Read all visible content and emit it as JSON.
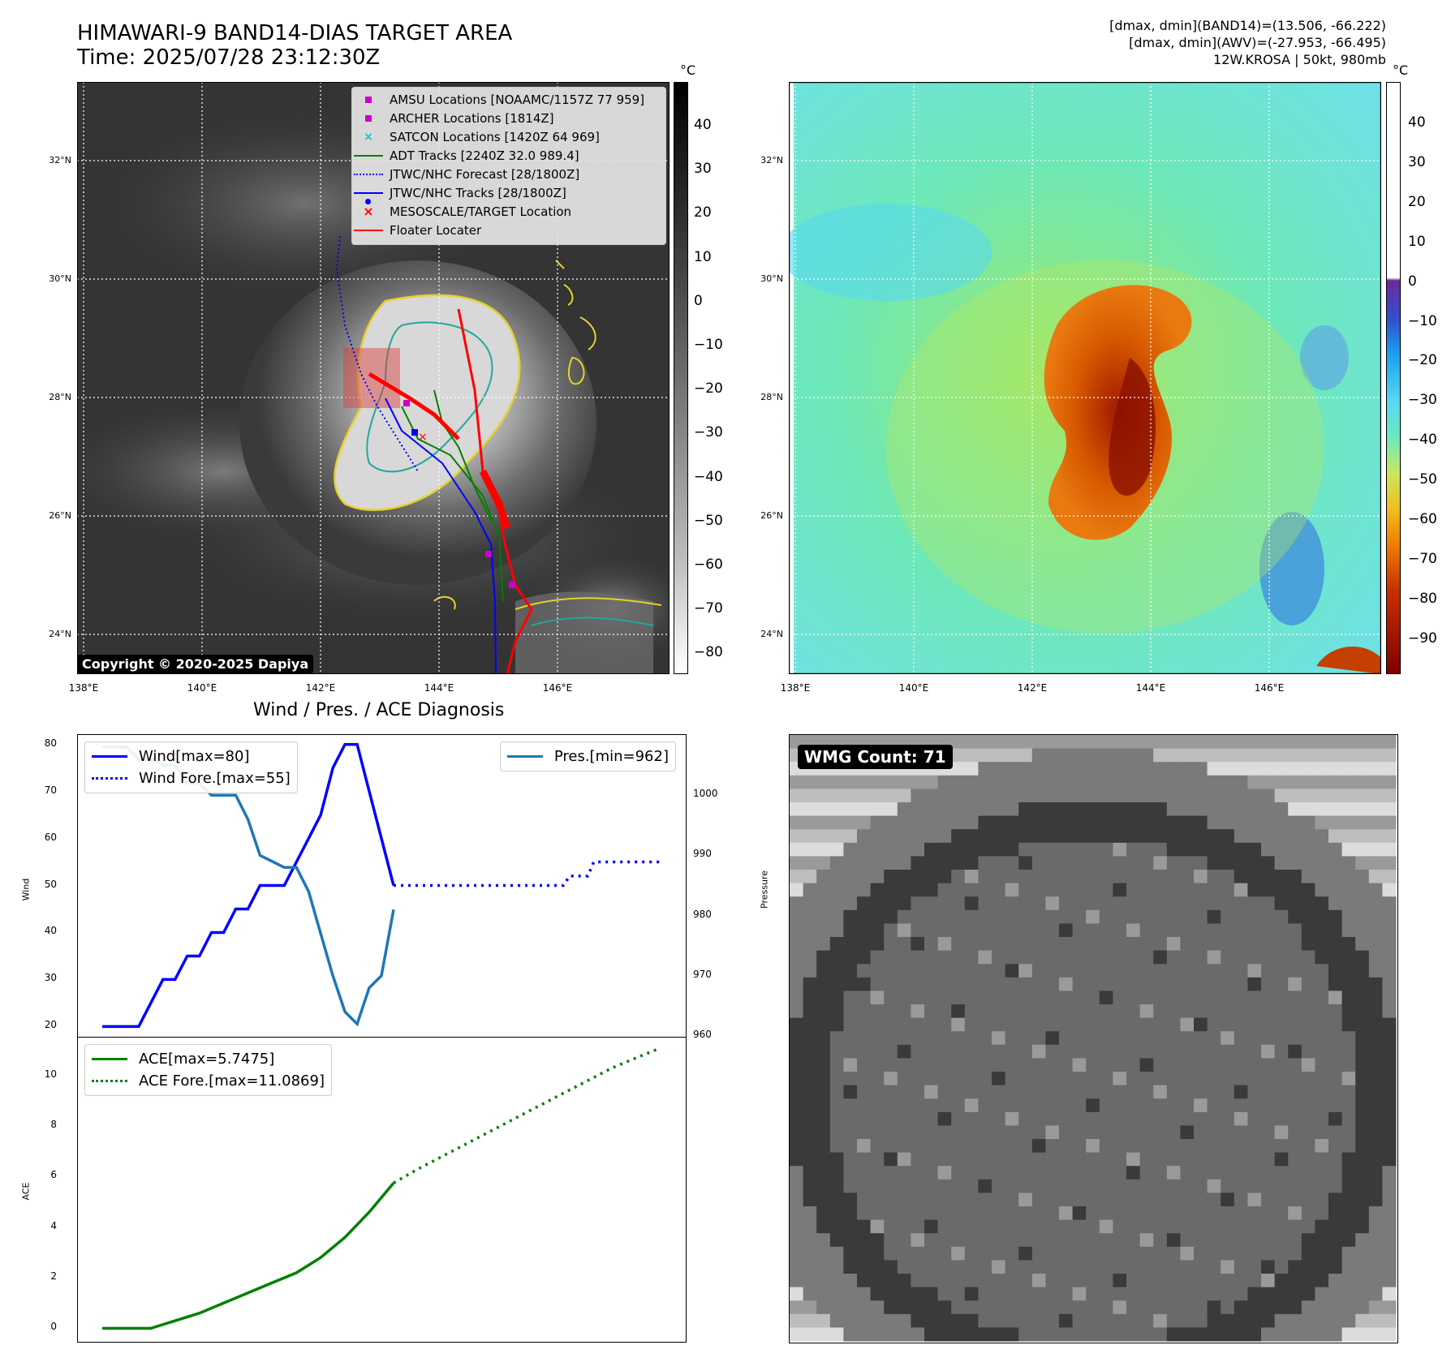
{
  "header": {
    "title_line1": "HIMAWARI-9 BAND14-DIAS TARGET AREA",
    "title_line2": "Time: 2025/07/28 23:12:30Z",
    "info_line1": "[dmax, dmin](BAND14)=(13.506, -66.222)",
    "info_line2": "[dmax, dmin](AWV)=(-27.953, -66.495)",
    "info_line3": "12W.KROSA | 50kt, 980mb"
  },
  "map_axes": {
    "lat_labels": [
      "32°N",
      "30°N",
      "28°N",
      "26°N",
      "24°N"
    ],
    "lon_labels": [
      "138°E",
      "140°E",
      "142°E",
      "144°E",
      "146°E"
    ]
  },
  "ir_panel": {
    "unit": "°C",
    "cbar_ticks": [
      "40",
      "30",
      "20",
      "10",
      "0",
      "−10",
      "−20",
      "−30",
      "−40",
      "−50",
      "−60",
      "−70",
      "−80"
    ],
    "legend": [
      {
        "label": "AMSU Locations [NOAAMC/1157Z 77 959]",
        "marker": "square",
        "color": "#cc00cc"
      },
      {
        "label": "ARCHER Locations [1814Z]",
        "marker": "square",
        "color": "#cc00cc"
      },
      {
        "label": "SATCON Locations [1420Z 64 969]",
        "marker": "x",
        "color": "#17becf"
      },
      {
        "label": "ADT Tracks [2240Z 32.0 989.4]",
        "marker": "line",
        "color": "#008000"
      },
      {
        "label": "JTWC/NHC Forecast [28/1800Z]",
        "marker": "dotted",
        "color": "#0000ff"
      },
      {
        "label": "JTWC/NHC Tracks [28/1800Z]",
        "marker": "line-dot",
        "color": "#0000ff"
      },
      {
        "label": "MESOSCALE/TARGET Location",
        "marker": "x",
        "color": "#ff0000"
      },
      {
        "label": "Floater Locater",
        "marker": "line",
        "color": "#ff0000"
      }
    ],
    "copyright": "Copyright © 2020-2025 Dapiya"
  },
  "color_panel": {
    "unit": "°C",
    "cbar_ticks": [
      "40",
      "30",
      "20",
      "10",
      "0",
      "−10",
      "−20",
      "−30",
      "−40",
      "−50",
      "−60",
      "−70",
      "−80",
      "−90"
    ]
  },
  "diagnosis": {
    "title": "Wind / Pres. / ACE Diagnosis",
    "wind_ylabel": "Wind",
    "pres_ylabel": "Pressure",
    "ace_ylabel": "ACE",
    "wind_ticks": [
      "80",
      "70",
      "60",
      "50",
      "40",
      "30",
      "20"
    ],
    "pres_ticks": [
      "1000",
      "990",
      "980",
      "970",
      "960"
    ],
    "ace_ticks": [
      "10",
      "8",
      "6",
      "4",
      "2",
      "0"
    ],
    "legend_wind": "Wind[max=80]",
    "legend_wind_fore": "Wind Fore.[max=55]",
    "legend_pres": "Pres.[min=962]",
    "legend_ace": "ACE[max=5.7475]",
    "legend_ace_fore": "ACE Fore.[max=11.0869]"
  },
  "wmg_panel": {
    "label": "WMG Count: 71"
  },
  "chart_data": [
    {
      "type": "line",
      "title": "Wind / Pres. / ACE Diagnosis",
      "ylabel": "Wind",
      "ylim": [
        18,
        82
      ],
      "series": [
        {
          "name": "Wind[max=80]",
          "x": [
            0,
            1,
            2,
            3,
            4,
            5,
            6,
            7,
            8,
            9,
            10,
            11,
            12,
            13,
            14,
            15,
            16,
            17,
            18,
            19,
            20,
            21,
            22,
            23,
            24
          ],
          "values": [
            20,
            20,
            20,
            20,
            25,
            30,
            30,
            35,
            35,
            40,
            40,
            45,
            45,
            50,
            50,
            50,
            55,
            60,
            65,
            75,
            80,
            80,
            70,
            60,
            50
          ]
        },
        {
          "name": "Wind Fore.[max=55]",
          "x": [
            24,
            26,
            28,
            30,
            32,
            34,
            36,
            38,
            38.5,
            40,
            40.5,
            42,
            44,
            46
          ],
          "values": [
            50,
            50,
            50,
            50,
            50,
            50,
            50,
            50,
            52,
            52,
            55,
            55,
            55,
            55
          ]
        },
        {
          "name": "Pres.[min=962]",
          "axis": "right",
          "x": [
            0,
            1,
            2,
            3,
            4,
            5,
            6,
            7,
            8,
            9,
            10,
            11,
            12,
            13,
            14,
            15,
            16,
            17,
            18,
            19,
            20,
            21,
            22,
            23,
            24
          ],
          "values": [
            1008,
            1008,
            1008,
            1006,
            1006,
            1005,
            1005,
            1002,
            1002,
            1000,
            1000,
            1000,
            996,
            990,
            989,
            988,
            988,
            984,
            977,
            970,
            964,
            962,
            968,
            970,
            981
          ]
        }
      ],
      "y2label": "Pressure",
      "y2lim": [
        960,
        1010
      ]
    },
    {
      "type": "line",
      "ylabel": "ACE",
      "ylim": [
        -0.5,
        11.5
      ],
      "series": [
        {
          "name": "ACE[max=5.7475]",
          "x": [
            0,
            2,
            4,
            6,
            8,
            10,
            12,
            14,
            16,
            18,
            20,
            22,
            24
          ],
          "values": [
            0,
            0,
            0,
            0.3,
            0.6,
            1.0,
            1.4,
            1.8,
            2.2,
            2.8,
            3.6,
            4.6,
            5.75
          ]
        },
        {
          "name": "ACE Fore.[max=11.0869]",
          "x": [
            24,
            26,
            28,
            30,
            32,
            34,
            36,
            38,
            40,
            42,
            44,
            46
          ],
          "values": [
            5.75,
            6.3,
            6.8,
            7.3,
            7.8,
            8.3,
            8.8,
            9.3,
            9.8,
            10.3,
            10.7,
            11.09
          ]
        }
      ]
    }
  ]
}
